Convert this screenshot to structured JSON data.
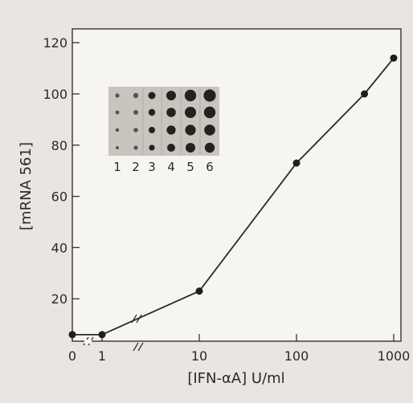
{
  "chart_data": {
    "type": "line",
    "xlabel": "[IFN-αA] U/ml",
    "ylabel": "[mRNA 561]",
    "x_scale": "log with axis break between 0 and 1",
    "x_ticks": [
      "0",
      "1",
      "10",
      "100",
      "1000"
    ],
    "y_ticks": [
      "20",
      "40",
      "60",
      "80",
      "100",
      "120"
    ],
    "ylim": [
      0,
      125
    ],
    "grid": false,
    "series": [
      {
        "x": [
          0,
          1,
          10,
          100,
          500,
          1000
        ],
        "y": [
          6,
          6,
          23,
          73,
          100,
          114
        ]
      }
    ],
    "inset": {
      "type": "dot blot",
      "lane_labels": [
        "1",
        "2",
        "3",
        "4",
        "5",
        "6"
      ],
      "rows": 4
    }
  }
}
